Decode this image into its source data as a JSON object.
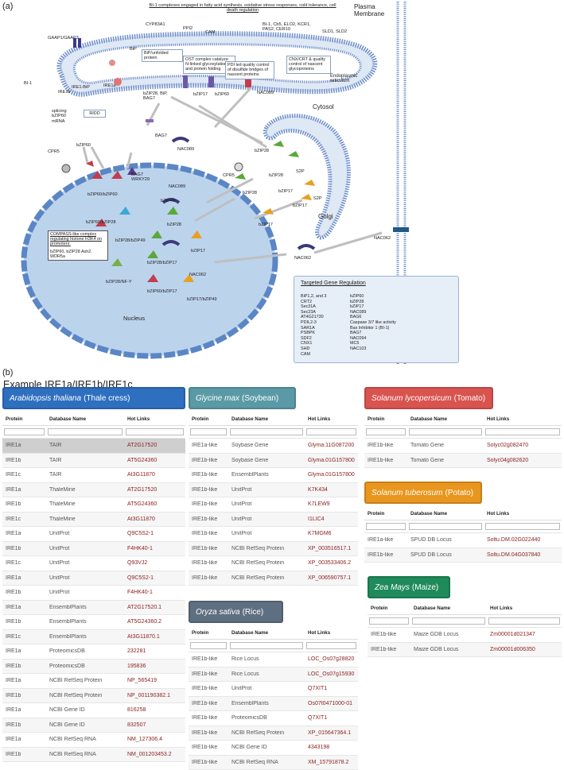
{
  "panel_a": {
    "letter": "(a)",
    "plasma_membrane": "Plasma Membrane",
    "top_box": "BI-1 complexes engaged in fatty acid synthesis, oxidative stress responses, cold tolerance, cell death regulation",
    "cyp": "CYP83A1",
    "ppi2": "PPI2",
    "cam": "CAM",
    "bi1_cb5": "BI-1, Cb5, ELO2, KCR1, PAS2, CER10",
    "sld": "SLD1, SLD2",
    "gaap": "GAAP1/GAAP3",
    "bip": "BiP",
    "bip_unfolded": "BiP/unfolded protein",
    "ost_box": "OST complex catalyze N-linked glycosylation and protein folding",
    "pdi_box": "PDI led quality control of disulfide bridges of nascent proteins",
    "cnx_box": "CNX/CRT & quality control of nascent glycoproteins",
    "er": "Endoplasmic reticulum",
    "bi1": "BI-1",
    "ire1b": "IRE1b",
    "ire1bip": "IRE1-BiP",
    "ire1a": "IRE1a",
    "bzip28_bip": "bZIP28, BiP, BAG7",
    "bzip17": "bZIP17",
    "bzip60_top": "bZIP60",
    "nac089": "NAC089",
    "cytosol": "Cytosol",
    "splicing": "splicing bZIP60 mRNA",
    "ridd": "RIDD",
    "bag7": "BAG7",
    "cpr5": "CPR5",
    "bzip60": "bZIP60",
    "nac089_b": "NAC089",
    "bzip28_a": "bZIP28",
    "bzip28_b": "bZIP28",
    "s2p_a": "S2P",
    "cpr5_b": "CPR5",
    "bzip28_c": "bZIP28",
    "bzip17_a": "bZIP17",
    "bzip17_b": "bZIP17",
    "s2p_b": "S2P",
    "bzip17_c": "bZIP17",
    "golgi": "Golgi",
    "nac062_r": "NAC062",
    "nac062_m": "NAC062",
    "bzip60_bzip60": "bZIP60/bZIP60",
    "bag7_wrky": "BAG7 WRKY29",
    "nac089_n": "NAC089",
    "bzip49": "bZIP49",
    "bzip60_bzip28": "bZIP60/bZIP28",
    "bzip28_n": "bZIP28",
    "compass_title": "COMPASS-like complex regulating histone H3K4 on promoters:",
    "compass_body": "bZIP60, bZIP28 Ash2, WDR5a",
    "bzip28_bzip49": "bZIP28/bZIP49",
    "bzip17_n": "bZIP17",
    "bzip28_bzip17": "bZIP28/bZIP17",
    "nac062_n": "NAC062",
    "bzip28_nfy": "bZIP28/NF-Y",
    "bzip60_bzip17": "bZIP60/bZIP17",
    "bzip17_bzip49": "bZIP17/bZIP49",
    "nucleus": "Nucleus",
    "tgr_title": "Targeted Gene Regulation",
    "tgr_left": [
      "BiP1,2, and 3",
      "CRT2",
      "Sec31A",
      "Sec23A",
      "AT4G21730",
      "PDIL2-3",
      "SAR1A",
      "PSBPK",
      "SDF2",
      "CNX1",
      "SHD",
      "CAM"
    ],
    "tgr_right": [
      "bZIP60",
      "bZIP28",
      "bZIP17",
      "NAC089",
      "BAG6",
      "Caspase 3/7 like activity",
      "Bax Inhibitor 1 (BI-1)",
      "BAG7",
      "NAC094",
      "MC5",
      "NAC103"
    ]
  },
  "panel_b": {
    "letter": "(b)",
    "title": "Example IRE1a/IRE1b/IRE1c",
    "col_protein": "Protein",
    "col_db": "Database Name",
    "col_links": "Hot Links",
    "arabidopsis": {
      "latin": "Arabidopsis thaliana",
      "common": "(Thale cress)",
      "rows": [
        [
          "IRE1a",
          "TAIR",
          "AT2G17520"
        ],
        [
          "IRE1b",
          "TAIR",
          "AT5G24360"
        ],
        [
          "IRE1c",
          "TAIR",
          "At3G11870"
        ],
        [
          "IRE1a",
          "ThaleMine",
          "AT2G17520"
        ],
        [
          "IRE1b",
          "ThaleMine",
          "AT5G24360"
        ],
        [
          "IRE1c",
          "ThaleMine",
          "At3G11870"
        ],
        [
          "IRE1a",
          "UnitProt",
          "Q9C5S2-1"
        ],
        [
          "IRE1b",
          "UnitProt",
          "F4HK40-1"
        ],
        [
          "IRE1c",
          "UnitProt",
          "Q93VJ2"
        ],
        [
          "IRE1a",
          "UnitProt",
          "Q9C5S2-1"
        ],
        [
          "IRE1b",
          "UnitProt",
          "F4HK40-1"
        ],
        [
          "IRE1a",
          "EnsemblPlants",
          "AT2G17520.1"
        ],
        [
          "IRE1b",
          "EnsemblPlants",
          "AT5G24360.2"
        ],
        [
          "IRE1c",
          "EnsemblPlants",
          "At3G11870.1"
        ],
        [
          "IRE1a",
          "ProteomicsDB",
          "232281"
        ],
        [
          "IRE1b",
          "ProteomicsDB",
          "195836"
        ],
        [
          "IRE1a",
          "NCBI RefSeq Protein",
          "NP_565419"
        ],
        [
          "IRE1b",
          "NCBI RefSeq Protein",
          "NP_001190382.1"
        ],
        [
          "IRE1a",
          "NCBI Gene ID",
          "816258"
        ],
        [
          "IRE1b",
          "NCBI Gene ID",
          "832507"
        ],
        [
          "IRE1a",
          "NCBI RefSeq RNA",
          "NM_127306.4"
        ],
        [
          "IRE1b",
          "NCBI RefSeq RNA",
          "NM_001203453.2"
        ]
      ]
    },
    "glycine": {
      "latin": "Glycine max",
      "common": "(Soybean)",
      "rows": [
        [
          "IRE1a-like",
          "Soybase Gene",
          "Glyma.11G087200"
        ],
        [
          "IRE1b-like",
          "Soybase Gene",
          "Glyma.01G157800"
        ],
        [
          "IRE1b-like",
          "EnsemblPlants",
          "Glyma.01G157800"
        ],
        [
          "IRE1b-like",
          "UnitProt",
          "K7K434"
        ],
        [
          "IRE1b-like",
          "UnitProt",
          "K7LEW9"
        ],
        [
          "IRE1b-like",
          "UnitProt",
          "I1LIC4"
        ],
        [
          "IRE1b-like",
          "UnitProt",
          "K7MGM6"
        ],
        [
          "IRE1b-like",
          "NCBI RefSeq Protein",
          "XP_003516517.1"
        ],
        [
          "IRE1b-like",
          "NCBI RefSeq Protein",
          "XP_003533406.2"
        ],
        [
          "IRE1b-like",
          "NCBI RefSeq Protein",
          "XP_006590757.1"
        ]
      ]
    },
    "oryza": {
      "latin": "Oryza sativa",
      "common": "(Rice)",
      "rows": [
        [
          "IRE1b-like",
          "Rice Locus",
          "LOC_Os07g28820"
        ],
        [
          "IRE1b-like",
          "Rice Locus",
          "LOC_Os07g15930"
        ],
        [
          "IRE1b-like",
          "UnitProt",
          "Q7XIT1"
        ],
        [
          "IRE1b-like",
          "EnsemblPlants",
          "Os07t0471000-01"
        ],
        [
          "IRE1b-like",
          "ProteomicsDB",
          "Q7XIT1"
        ],
        [
          "IRE1b-like",
          "NCBI RefSeq Protein",
          "XP_015647364.1"
        ],
        [
          "IRE1b-like",
          "NCBI Gene ID",
          "4343198"
        ],
        [
          "IRE1b-like",
          "NCBI RefSeq RNA",
          "XM_15791878.2"
        ]
      ]
    },
    "solanum_l": {
      "latin": "Solanum lycopersicum",
      "common": "(Tomato)",
      "rows": [
        [
          "IRE1b-like",
          "Tomato Gene",
          "Solyc02g082470"
        ],
        [
          "IRE1b-like",
          "Tomato Gene",
          "Solyc04g082620"
        ]
      ]
    },
    "solanum_t": {
      "latin": "Solanum tuberosum",
      "common": "(Potato)",
      "rows": [
        [
          "IRE1a-like",
          "SPUD DB Locus",
          "Soltu.DM.02G022440"
        ],
        [
          "IRE1b-like",
          "SPUD DB Locus",
          "Soltu.DM.04G037840"
        ]
      ]
    },
    "zea": {
      "latin": "Zea Mays",
      "common": "(Maize)",
      "rows": [
        [
          "IRE1b-like",
          "Maize GDB Locus",
          "Zm00001d021347"
        ],
        [
          "IRE1b-like",
          "Maize GDB Locus",
          "Zm00001d006350"
        ]
      ]
    },
    "colors": {
      "arabidopsis": "#2f6fc0",
      "glycine": "#5a9aa6",
      "oryza": "#5f6f82",
      "solanum_l": "#d9534f",
      "solanum_t": "#e8961e",
      "zea": "#1f8a5a"
    }
  }
}
